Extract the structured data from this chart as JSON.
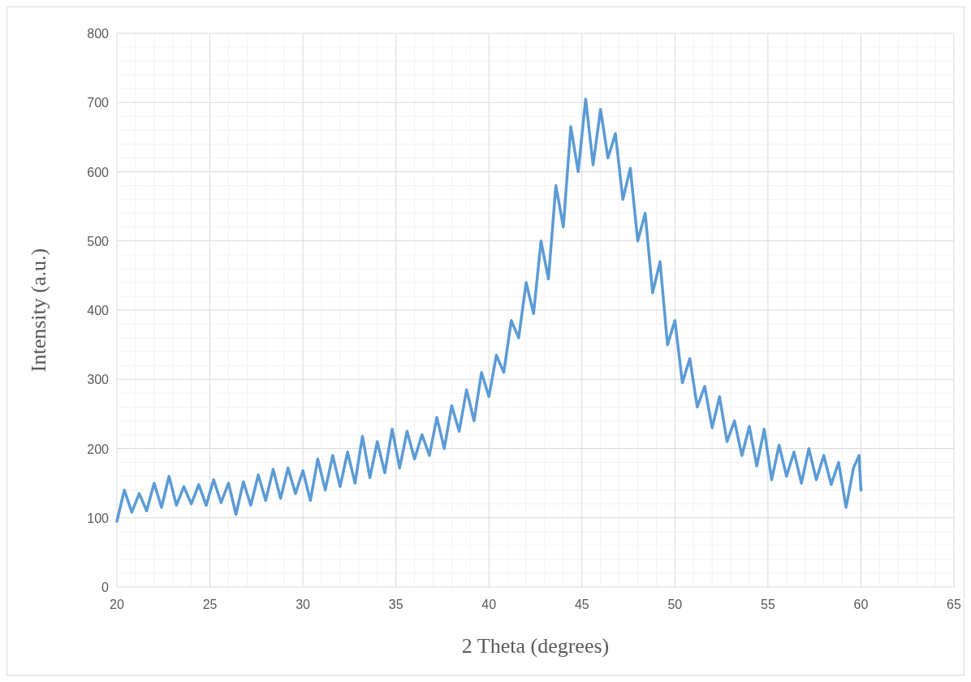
{
  "chart_data": {
    "type": "line",
    "xlabel": "2 Theta (degrees)",
    "ylabel": "Intensity (a.u.)",
    "xlim": [
      20,
      65
    ],
    "xticks": [
      20,
      25,
      30,
      35,
      40,
      45,
      50,
      55,
      60,
      65
    ],
    "ylim": [
      0,
      800
    ],
    "yticks": [
      0,
      100,
      200,
      300,
      400,
      500,
      600,
      700,
      800
    ],
    "grid": true,
    "marker": "none",
    "line_style": "solid",
    "x": [
      20,
      20.4,
      20.8,
      21.2,
      21.6,
      22,
      22.4,
      22.8,
      23.2,
      23.6,
      24,
      24.4,
      24.8,
      25.2,
      25.6,
      26,
      26.4,
      26.8,
      27.2,
      27.6,
      28,
      28.4,
      28.8,
      29.2,
      29.6,
      30,
      30.4,
      30.8,
      31.2,
      31.6,
      32,
      32.4,
      32.8,
      33.2,
      33.6,
      34,
      34.4,
      34.8,
      35.2,
      35.6,
      36,
      36.4,
      36.8,
      37.2,
      37.6,
      38,
      38.4,
      38.8,
      39.2,
      39.6,
      40,
      40.4,
      40.8,
      41.2,
      41.6,
      42,
      42.4,
      42.8,
      43.2,
      43.6,
      44,
      44.4,
      44.8,
      45.2,
      45.6,
      46,
      46.4,
      46.8,
      47.2,
      47.6,
      48,
      48.4,
      48.8,
      49.2,
      49.6,
      50,
      50.4,
      50.8,
      51.2,
      51.6,
      52,
      52.4,
      52.8,
      53.2,
      53.6,
      54,
      54.4,
      54.8,
      55.2,
      55.6,
      56,
      56.4,
      56.8,
      57.2,
      57.6,
      58,
      58.4,
      58.8,
      59.2,
      59.6,
      59.9,
      60
    ],
    "series": [
      {
        "color": "#5b9bd5",
        "values": [
          95,
          140,
          108,
          135,
          110,
          150,
          115,
          160,
          118,
          145,
          120,
          148,
          118,
          155,
          122,
          150,
          105,
          152,
          118,
          162,
          125,
          170,
          128,
          172,
          135,
          168,
          125,
          185,
          140,
          190,
          145,
          195,
          150,
          218,
          158,
          210,
          165,
          228,
          172,
          225,
          185,
          220,
          190,
          245,
          200,
          262,
          225,
          285,
          240,
          310,
          275,
          335,
          310,
          385,
          360,
          440,
          395,
          500,
          445,
          580,
          520,
          665,
          600,
          705,
          610,
          690,
          620,
          655,
          560,
          605,
          500,
          540,
          425,
          470,
          350,
          385,
          295,
          330,
          260,
          290,
          230,
          275,
          210,
          240,
          190,
          232,
          175,
          228,
          155,
          205,
          160,
          195,
          150,
          200,
          155,
          190,
          148,
          180,
          115,
          172,
          190,
          140
        ]
      }
    ]
  }
}
